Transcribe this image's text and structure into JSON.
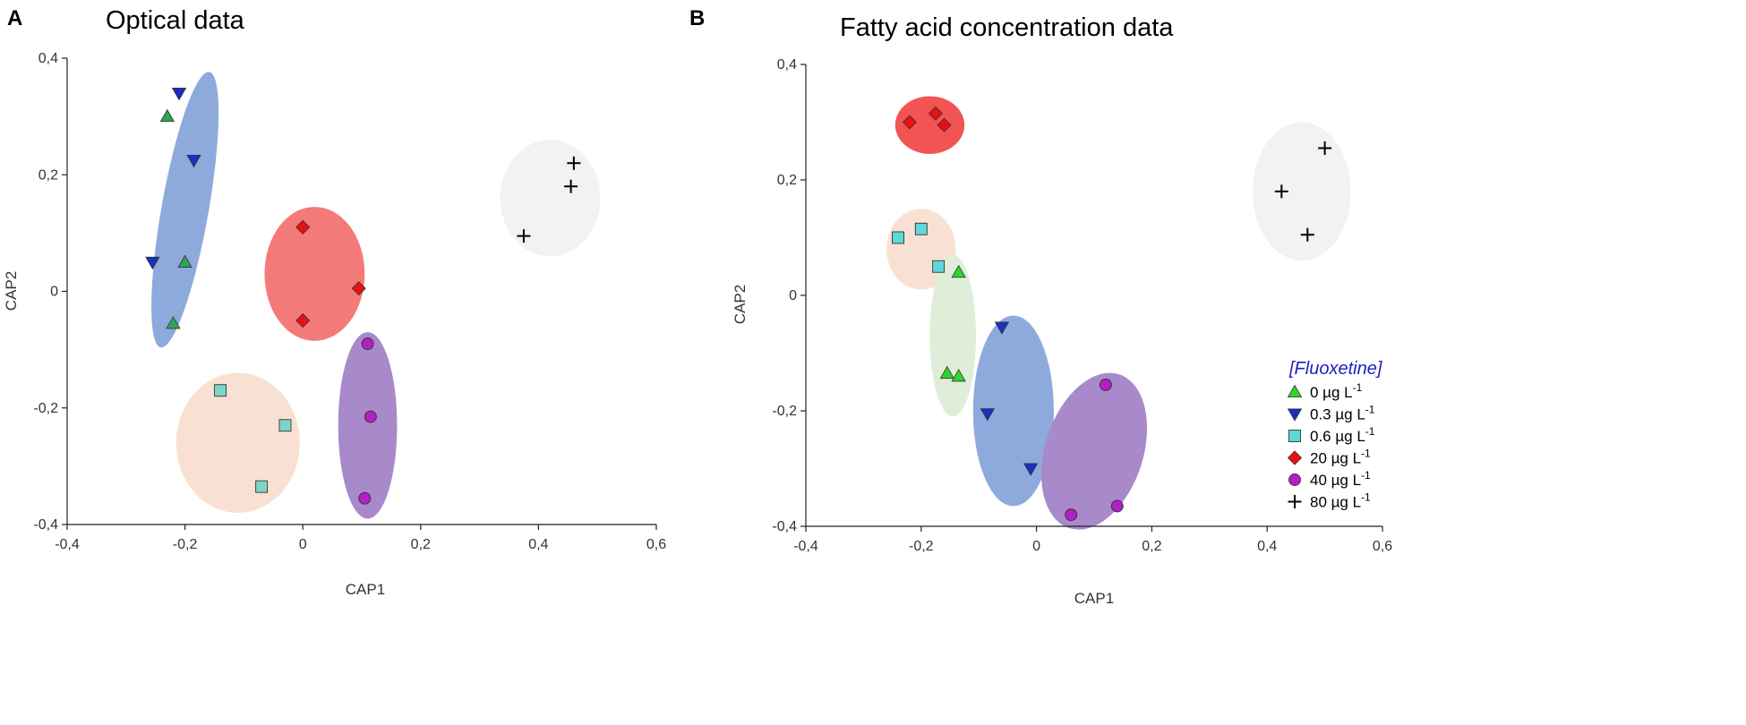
{
  "chart_data": [
    {
      "type": "scatter",
      "panel_label": "A",
      "title": "Optical data",
      "xlabel": "CAP1",
      "ylabel": "CAP2",
      "xlim": [
        -0.4,
        0.6
      ],
      "ylim": [
        -0.4,
        0.4
      ],
      "xticks": [
        "-0,4",
        "-0,2",
        "0",
        "0,2",
        "0,4",
        "0,6"
      ],
      "yticks": [
        "-0,4",
        "-0,2",
        "0",
        "0,2",
        "0,4"
      ],
      "xtick_values": [
        -0.4,
        -0.2,
        0,
        0.2,
        0.4,
        0.6
      ],
      "ytick_values": [
        -0.4,
        -0.2,
        0,
        0.2,
        0.4
      ],
      "groups": [
        {
          "name": "0.3 µg L-1 + 0 µg L-1 cluster",
          "color": "#8eaadc",
          "ellipse": {
            "cx": -0.2,
            "cy": 0.14,
            "rx": 0.04,
            "ry": 0.24,
            "angle": 10
          }
        },
        {
          "name": "20 µg L-1 cluster",
          "color": "#f47a7a",
          "ellipse": {
            "cx": 0.02,
            "cy": 0.03,
            "rx": 0.085,
            "ry": 0.115,
            "angle": 0
          }
        },
        {
          "name": "0.6 µg L-1 cluster",
          "color": "#f8e1d2",
          "ellipse": {
            "cx": -0.11,
            "cy": -0.26,
            "rx": 0.105,
            "ry": 0.12,
            "angle": 0
          }
        },
        {
          "name": "40 µg L-1 cluster",
          "color": "#a88acb",
          "ellipse": {
            "cx": 0.11,
            "cy": -0.23,
            "rx": 0.05,
            "ry": 0.16,
            "angle": 0
          }
        },
        {
          "name": "80 µg L-1 cluster",
          "color": "#f2f2f2",
          "ellipse": {
            "cx": 0.42,
            "cy": 0.16,
            "rx": 0.085,
            "ry": 0.1,
            "angle": 0
          }
        }
      ],
      "series": [
        {
          "name": "0 µg L-1",
          "marker": "triangle-up",
          "color": "#2ea35a",
          "points": [
            [
              -0.23,
              0.3
            ],
            [
              -0.2,
              0.05
            ],
            [
              -0.22,
              -0.055
            ]
          ]
        },
        {
          "name": "0.3 µg L-1",
          "marker": "triangle-down",
          "color": "#1a2fbf",
          "points": [
            [
              -0.21,
              0.34
            ],
            [
              -0.185,
              0.225
            ],
            [
              -0.255,
              0.05
            ]
          ]
        },
        {
          "name": "0.6 µg L-1",
          "marker": "square",
          "color": "#7fd6c6",
          "points": [
            [
              -0.14,
              -0.17
            ],
            [
              -0.03,
              -0.23
            ],
            [
              -0.07,
              -0.335
            ]
          ]
        },
        {
          "name": "20 µg L-1",
          "marker": "diamond",
          "color": "#e81010",
          "points": [
            [
              0.0,
              0.11
            ],
            [
              0.095,
              0.005
            ],
            [
              0.0,
              -0.05
            ]
          ]
        },
        {
          "name": "40 µg L-1",
          "marker": "circle",
          "color": "#b21fc2",
          "points": [
            [
              0.11,
              -0.09
            ],
            [
              0.115,
              -0.215
            ],
            [
              0.105,
              -0.355
            ]
          ]
        },
        {
          "name": "80 µg L-1",
          "marker": "plus",
          "color": "#000000",
          "points": [
            [
              0.46,
              0.22
            ],
            [
              0.455,
              0.18
            ],
            [
              0.375,
              0.095
            ]
          ]
        }
      ]
    },
    {
      "type": "scatter",
      "panel_label": "B",
      "title": "Fatty acid concentration data",
      "xlabel": "CAP1",
      "ylabel": "CAP2",
      "xlim": [
        -0.4,
        0.6
      ],
      "ylim": [
        -0.4,
        0.4
      ],
      "xticks": [
        "-0,4",
        "-0,2",
        "0",
        "0,2",
        "0,4",
        "0,6"
      ],
      "yticks": [
        "-0,4",
        "-0,2",
        "0",
        "0,2",
        "0,4"
      ],
      "xtick_values": [
        -0.4,
        -0.2,
        0,
        0.2,
        0.4,
        0.6
      ],
      "ytick_values": [
        -0.4,
        -0.2,
        0,
        0.2,
        0.4
      ],
      "groups": [
        {
          "name": "20 µg L-1 cluster",
          "color": "#f25454",
          "ellipse": {
            "cx": -0.185,
            "cy": 0.295,
            "rx": 0.06,
            "ry": 0.05,
            "angle": 0
          }
        },
        {
          "name": "0.6 µg L-1 cluster",
          "color": "#f8e1d2",
          "ellipse": {
            "cx": -0.2,
            "cy": 0.08,
            "rx": 0.06,
            "ry": 0.07,
            "angle": 0
          }
        },
        {
          "name": "0 µg L-1 cluster",
          "color": "#e0eed9",
          "ellipse": {
            "cx": -0.145,
            "cy": -0.07,
            "rx": 0.04,
            "ry": 0.14,
            "angle": 0
          }
        },
        {
          "name": "0.3 µg L-1 cluster",
          "color": "#8eaadc",
          "ellipse": {
            "cx": -0.04,
            "cy": -0.2,
            "rx": 0.07,
            "ry": 0.165,
            "angle": 0
          }
        },
        {
          "name": "40 µg L-1 cluster",
          "color": "#a88acb",
          "ellipse": {
            "cx": 0.1,
            "cy": -0.27,
            "rx": 0.085,
            "ry": 0.14,
            "angle": 18
          }
        },
        {
          "name": "80 µg L-1 cluster",
          "color": "#f2f2f2",
          "ellipse": {
            "cx": 0.46,
            "cy": 0.18,
            "rx": 0.085,
            "ry": 0.12,
            "angle": 0
          }
        }
      ],
      "series": [
        {
          "name": "0 µg L-1",
          "marker": "triangle-up",
          "color": "#2fd52f",
          "points": [
            [
              -0.135,
              0.04
            ],
            [
              -0.155,
              -0.135
            ],
            [
              -0.135,
              -0.14
            ]
          ]
        },
        {
          "name": "0.3 µg L-1",
          "marker": "triangle-down",
          "color": "#1a2fbf",
          "points": [
            [
              -0.06,
              -0.055
            ],
            [
              -0.085,
              -0.205
            ],
            [
              -0.01,
              -0.3
            ]
          ]
        },
        {
          "name": "0.6 µg L-1",
          "marker": "square",
          "color": "#5fd8d8",
          "points": [
            [
              -0.24,
              0.1
            ],
            [
              -0.2,
              0.115
            ],
            [
              -0.17,
              0.05
            ]
          ]
        },
        {
          "name": "20 µg L-1",
          "marker": "diamond",
          "color": "#e81010",
          "points": [
            [
              -0.22,
              0.3
            ],
            [
              -0.175,
              0.315
            ],
            [
              -0.16,
              0.295
            ]
          ]
        },
        {
          "name": "40 µg L-1",
          "marker": "circle",
          "color": "#b21fc2",
          "points": [
            [
              0.12,
              -0.155
            ],
            [
              0.06,
              -0.38
            ],
            [
              0.14,
              -0.365
            ]
          ]
        },
        {
          "name": "80 µg L-1",
          "marker": "plus",
          "color": "#000000",
          "points": [
            [
              0.5,
              0.255
            ],
            [
              0.425,
              0.18
            ],
            [
              0.47,
              0.105
            ]
          ]
        }
      ]
    }
  ],
  "legend": {
    "title": "[Fluoxetine]",
    "items": [
      {
        "label": "0 µg L",
        "sup": "-1",
        "marker": "triangle-up",
        "color": "#2fd52f"
      },
      {
        "label": "0.3 µg L",
        "sup": "-1",
        "marker": "triangle-down",
        "color": "#1a2fbf"
      },
      {
        "label": "0.6 µg L",
        "sup": "-1",
        "marker": "square",
        "color": "#5fd8d8"
      },
      {
        "label": "20 µg L",
        "sup": "-1",
        "marker": "diamond",
        "color": "#e81010"
      },
      {
        "label": "40 µg L",
        "sup": "-1",
        "marker": "circle",
        "color": "#b21fc2"
      },
      {
        "label": "80 µg L",
        "sup": "-1",
        "marker": "plus",
        "color": "#000000"
      }
    ]
  }
}
